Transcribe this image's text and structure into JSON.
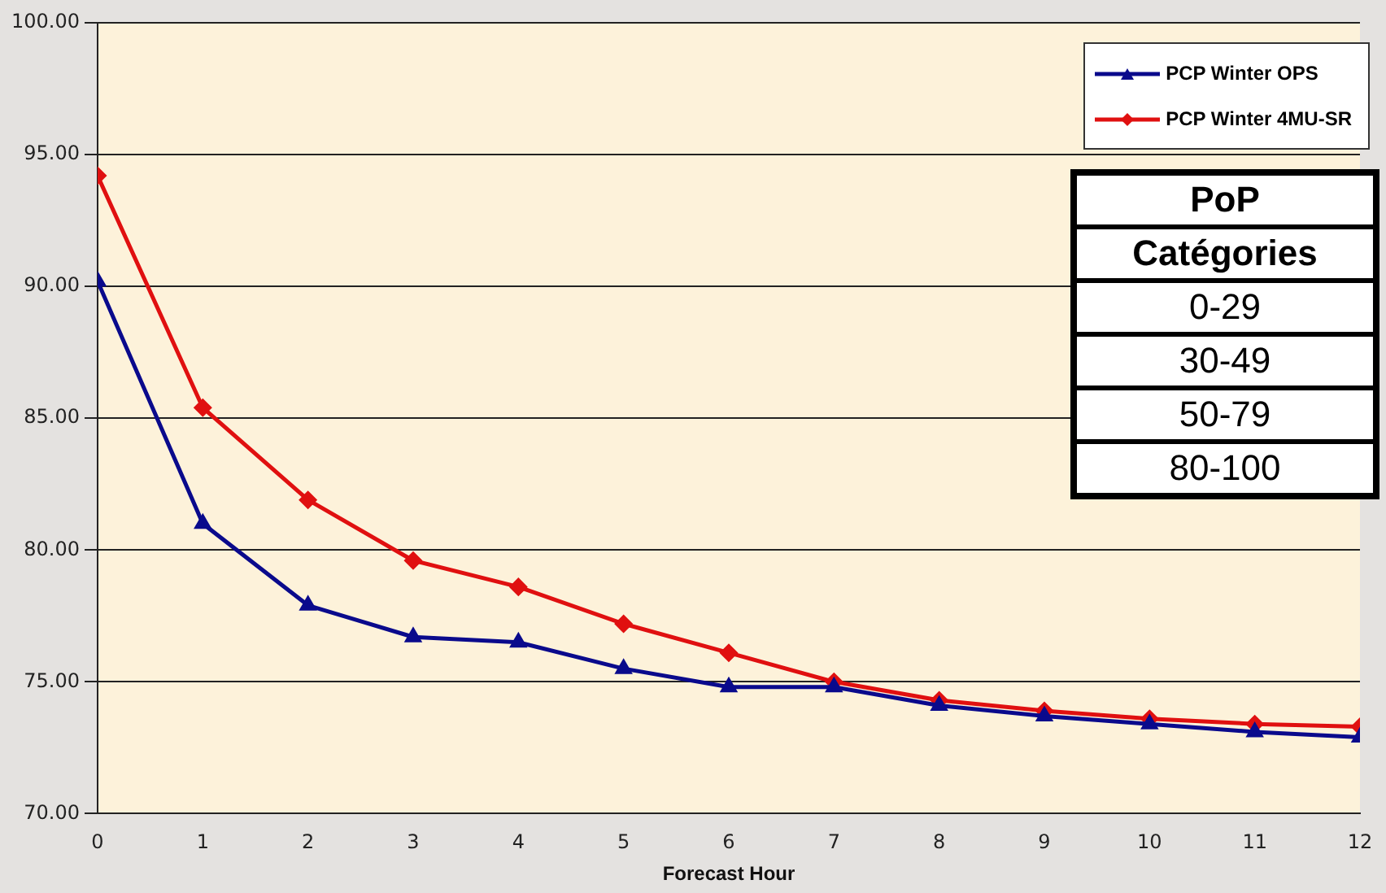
{
  "chart_data": {
    "type": "line",
    "xlabel": "Forecast Hour",
    "x": [
      0,
      1,
      2,
      3,
      4,
      5,
      6,
      7,
      8,
      9,
      10,
      11,
      12
    ],
    "xlim": [
      0,
      12
    ],
    "xticks": [
      0,
      1,
      2,
      3,
      4,
      5,
      6,
      7,
      8,
      9,
      10,
      11,
      12
    ],
    "series": [
      {
        "name": "PCP Winter OPS",
        "color": "#0a0a8c",
        "marker": "triangle",
        "values": [
          90.2,
          81.0,
          77.9,
          76.7,
          76.5,
          75.5,
          74.8,
          74.8,
          74.1,
          73.7,
          73.4,
          73.1,
          72.9
        ]
      },
      {
        "name": "PCP Winter 4MU-SR",
        "color": "#e01010",
        "marker": "diamond",
        "values": [
          94.2,
          85.4,
          81.9,
          79.6,
          78.6,
          77.2,
          76.1,
          75.0,
          74.3,
          73.9,
          73.6,
          73.4,
          73.3
        ]
      }
    ],
    "ylim": [
      70,
      100
    ],
    "yticks": [
      {
        "value": 70,
        "label": "70.00"
      },
      {
        "value": 75,
        "label": "75.00"
      },
      {
        "value": 80,
        "label": "80.00"
      },
      {
        "value": 85,
        "label": "85.00"
      },
      {
        "value": 90,
        "label": "90.00"
      },
      {
        "value": 95,
        "label": "95.00"
      },
      {
        "value": 100,
        "label": "100.00"
      }
    ],
    "grid": "y",
    "legend": "top right",
    "line_style": "solid",
    "annotations": [
      "PoP",
      "Catégories",
      "0-29",
      "30-49",
      "50-79",
      "80-100"
    ]
  }
}
